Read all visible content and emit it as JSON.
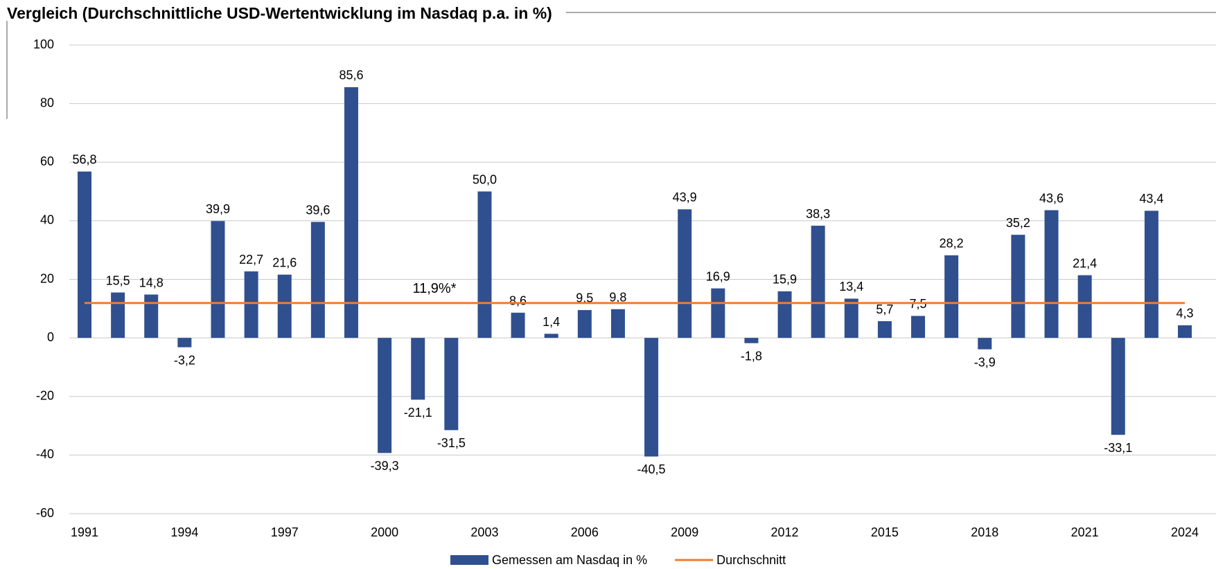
{
  "chart_data": {
    "type": "bar",
    "title": "Vergleich (Durchschnittliche USD-Wertentwicklung im Nasdaq p.a. in %)",
    "categories": [
      "1991",
      null,
      null,
      "1994",
      null,
      null,
      "1997",
      null,
      null,
      "2000",
      null,
      null,
      "2003",
      null,
      null,
      "2006",
      null,
      null,
      "2009",
      null,
      null,
      "2012",
      null,
      null,
      "2015",
      null,
      null,
      "2018",
      null,
      null,
      "2021",
      null,
      null,
      "2024"
    ],
    "series": [
      {
        "name": "Gemessen am Nasdaq in %",
        "color": "#2f4f8f",
        "type": "bar",
        "values": [
          56.8,
          15.5,
          14.8,
          -3.2,
          39.9,
          22.7,
          21.6,
          39.6,
          85.6,
          -39.3,
          -21.1,
          -31.5,
          50.0,
          8.6,
          1.4,
          9.5,
          9.8,
          -40.5,
          43.9,
          16.9,
          -1.8,
          15.9,
          38.3,
          13.4,
          5.7,
          7.5,
          28.2,
          -3.9,
          35.2,
          43.6,
          21.4,
          -33.1,
          43.4,
          4.3
        ],
        "value_labels": [
          "56,8",
          "15,5",
          "14,8",
          "-3,2",
          "39,9",
          "22,7",
          "21,6",
          "39,6",
          "85,6",
          "-39,3",
          "-21,1",
          "-31,5",
          "50,0",
          "8,6",
          "1,4",
          "9,5",
          "9,8",
          "-40,5",
          "43,9",
          "16,9",
          "-1,8",
          "15,9",
          "38,3",
          "13,4",
          "5,7",
          "7,5",
          "28,2",
          "-3,9",
          "35,2",
          "43,6",
          "21,4",
          "-33,1",
          "43,4",
          "4,3"
        ]
      },
      {
        "name": "Durchschnitt",
        "color": "#ed7d31",
        "type": "line",
        "value": 11.9,
        "value_label": "11,9%*"
      }
    ],
    "ylim": [
      -60,
      100
    ],
    "yticks": [
      -60,
      -40,
      -20,
      0,
      20,
      40,
      60,
      80,
      100
    ],
    "grid": true
  }
}
